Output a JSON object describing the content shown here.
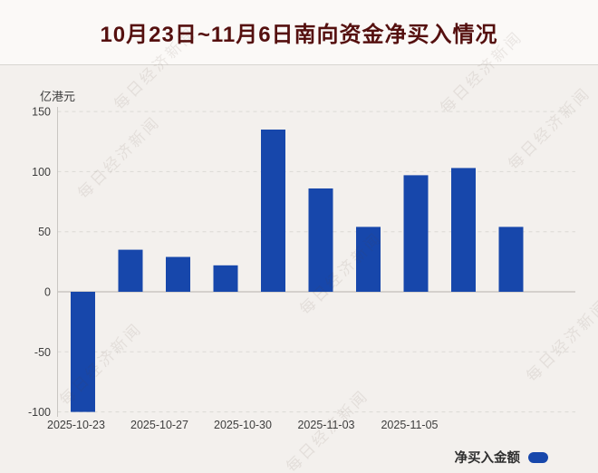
{
  "title": "10月23日~11月6日南向资金净买入情况",
  "watermark": {
    "text": "每日经济新闻"
  },
  "chart_data": {
    "type": "bar",
    "title": "10月23日~11月6日南向资金净买入情况",
    "unit_label": "亿港元",
    "ylabel": "亿港元",
    "xlabel": "",
    "ylim": [
      -100,
      150
    ],
    "y_ticks": [
      150,
      100,
      50,
      0,
      -50,
      -100
    ],
    "x_tick_labels": [
      "2025-10-23",
      "2025-10-27",
      "2025-10-30",
      "2025-11-03",
      "2025-11-05"
    ],
    "values": [
      -100,
      35,
      29,
      22,
      135,
      86,
      54,
      97,
      103,
      54
    ],
    "bar_color": "#1747ab",
    "grid": "horizontal dashed gridlines, light gray",
    "legend": {
      "label": "净买入金额",
      "color": "#1747ab",
      "position": "bottom-right"
    }
  }
}
